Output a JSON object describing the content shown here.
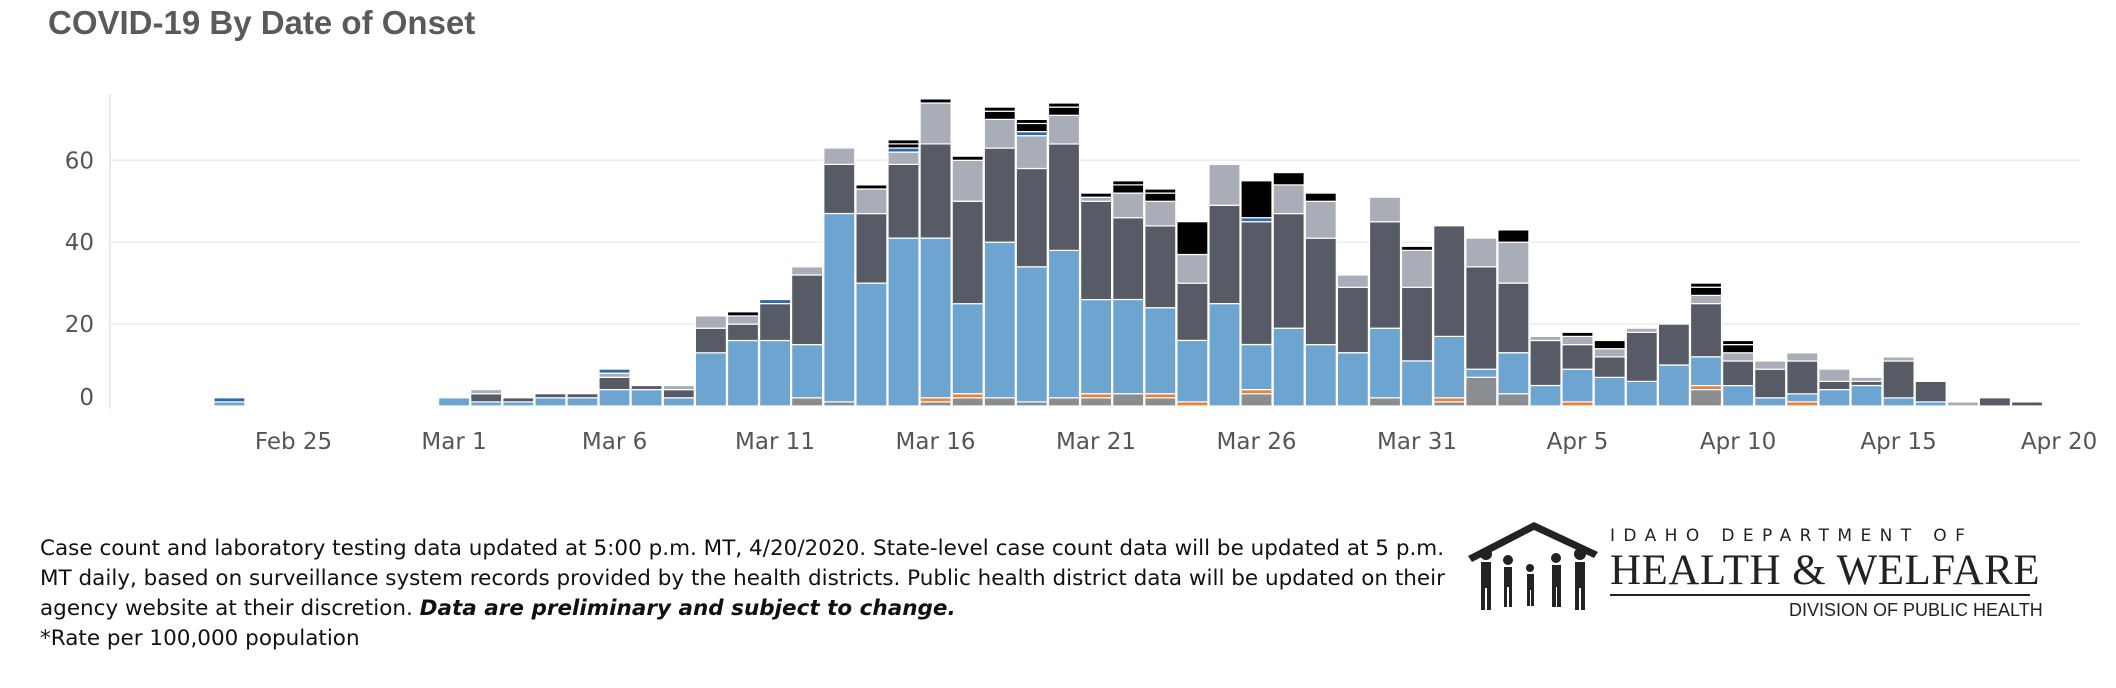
{
  "title": "COVID-19 By Date of Onset",
  "footnote": {
    "text": "Case count and laboratory testing data updated at 5:00 p.m. MT, 4/20/2020. State-level case count data will be updated at 5 p.m. MT daily, based on surveillance system records provided by the health districts. Public health district data will be updated on their agency website at their discretion. ",
    "emphasis": "Data are preliminary and subject to change.",
    "rate_note": "*Rate per 100,000 population"
  },
  "logo": {
    "line1": "IDAHO DEPARTMENT OF",
    "line2": "HEALTH & WELFARE",
    "line3": "DIVISION OF PUBLIC HEALTH",
    "icon": "family-figures-house-icon"
  },
  "chart_data": {
    "type": "bar",
    "stacked": true,
    "title": "COVID-19 By Date of Onset",
    "xlabel": "",
    "ylabel": "",
    "x_start": "2020-02-20",
    "x_tick_labels": [
      "Feb 25",
      "Mar 1",
      "Mar 6",
      "Mar 11",
      "Mar 16",
      "Mar 21",
      "Mar 26",
      "Mar 31",
      "Apr 5",
      "Apr 10",
      "Apr 15",
      "Apr 20"
    ],
    "x_tick_dates": [
      "2020-02-25",
      "2020-03-01",
      "2020-03-06",
      "2020-03-11",
      "2020-03-16",
      "2020-03-21",
      "2020-03-26",
      "2020-03-31",
      "2020-04-05",
      "2020-04-10",
      "2020-04-15",
      "2020-04-20"
    ],
    "y_tick_labels": [
      "0",
      "20",
      "40",
      "60"
    ],
    "y_tick_values": [
      0,
      20,
      40,
      60
    ],
    "ylim": [
      0,
      76
    ],
    "grid": true,
    "legend": "none",
    "colors": [
      "#8a8d91",
      "#e8833a",
      "#6ea4d0",
      "#575b66",
      "#a9adb8",
      "#2f6aa8"
    ],
    "dates": [
      "2020-02-23",
      "2020-03-01",
      "2020-03-02",
      "2020-03-03",
      "2020-03-04",
      "2020-03-05",
      "2020-03-06",
      "2020-03-07",
      "2020-03-08",
      "2020-03-09",
      "2020-03-10",
      "2020-03-11",
      "2020-03-12",
      "2020-03-13",
      "2020-03-14",
      "2020-03-15",
      "2020-03-16",
      "2020-03-17",
      "2020-03-18",
      "2020-03-19",
      "2020-03-20",
      "2020-03-21",
      "2020-03-22",
      "2020-03-23",
      "2020-03-24",
      "2020-03-25",
      "2020-03-26",
      "2020-03-27",
      "2020-03-28",
      "2020-03-29",
      "2020-03-30",
      "2020-03-31",
      "2020-04-01",
      "2020-04-02",
      "2020-04-03",
      "2020-04-04",
      "2020-04-05",
      "2020-04-06",
      "2020-04-07",
      "2020-04-08",
      "2020-04-09",
      "2020-04-10",
      "2020-04-11",
      "2020-04-12",
      "2020-04-13",
      "2020-04-14",
      "2020-04-15",
      "2020-04-16",
      "2020-04-17",
      "2020-04-18",
      "2020-04-19"
    ],
    "series": [
      {
        "values": [
          0,
          0,
          0,
          0,
          0,
          0,
          0,
          0,
          0,
          0,
          0,
          0,
          2,
          1,
          0,
          0,
          1,
          2,
          2,
          1,
          2,
          2,
          3,
          2,
          0,
          0,
          3,
          0,
          0,
          0,
          2,
          0,
          1,
          7,
          3,
          0,
          0,
          0,
          0,
          0,
          4,
          0,
          0,
          0,
          0,
          0,
          0,
          0,
          0,
          0,
          0
        ]
      },
      {
        "values": [
          0,
          0,
          0,
          0,
          0,
          0,
          0,
          0,
          0,
          0,
          0,
          0,
          0,
          0,
          0,
          0,
          1,
          1,
          0,
          0,
          0,
          1,
          0,
          1,
          1,
          0,
          1,
          0,
          0,
          0,
          0,
          0,
          1,
          0,
          0,
          0,
          1,
          0,
          0,
          0,
          1,
          0,
          0,
          1,
          0,
          0,
          0,
          0,
          0,
          0,
          0
        ]
      },
      {
        "values": [
          1,
          2,
          1,
          1,
          2,
          2,
          4,
          4,
          2,
          13,
          16,
          16,
          13,
          46,
          30,
          41,
          39,
          22,
          38,
          33,
          36,
          23,
          23,
          21,
          15,
          25,
          11,
          19,
          15,
          13,
          17,
          11,
          15,
          2,
          10,
          5,
          8,
          7,
          6,
          10,
          7,
          5,
          2,
          2,
          4,
          5,
          2,
          1,
          0,
          0,
          0
        ]
      },
      {
        "values": [
          0,
          0,
          2,
          1,
          1,
          1,
          3,
          1,
          2,
          6,
          4,
          9,
          17,
          12,
          17,
          18,
          23,
          25,
          23,
          24,
          26,
          24,
          20,
          20,
          14,
          24,
          30,
          28,
          26,
          16,
          26,
          18,
          27,
          25,
          17,
          11,
          6,
          5,
          12,
          10,
          13,
          6,
          7,
          8,
          2,
          1,
          9,
          5,
          0,
          2,
          1
        ]
      },
      {
        "values": [
          0,
          0,
          1,
          0,
          0,
          0,
          1,
          0,
          1,
          3,
          2,
          0,
          2,
          4,
          6,
          3,
          10,
          10,
          7,
          8,
          7,
          1,
          6,
          6,
          7,
          10,
          0,
          7,
          9,
          3,
          6,
          9,
          0,
          7,
          10,
          1,
          2,
          2,
          1,
          0,
          2,
          2,
          2,
          2,
          3,
          1,
          1,
          0,
          1,
          0,
          0
        ]
      },
      {
        "values": [
          1,
          0,
          0,
          0,
          0,
          0,
          1,
          0,
          0,
          0,
          0,
          1,
          0,
          0,
          0,
          1,
          0,
          0,
          0,
          1,
          0,
          0,
          0,
          0,
          0,
          0,
          1,
          0,
          0,
          0,
          0,
          0,
          0,
          0,
          0,
          0,
          0,
          0,
          0,
          0,
          0,
          0,
          0,
          0,
          0,
          0,
          0,
          0,
          0,
          0,
          0
        ]
      },
      {
        "values": [
          0,
          0,
          0,
          0,
          0,
          0,
          0,
          0,
          0,
          0,
          1,
          0,
          0,
          0,
          0,
          1,
          1,
          1,
          2,
          2,
          2,
          1,
          2,
          2,
          8,
          0,
          9,
          3,
          2,
          0,
          0,
          1,
          0,
          0,
          3,
          0,
          1,
          2,
          0,
          0,
          2,
          2,
          0,
          0,
          0,
          0,
          0,
          0,
          0,
          0,
          0
        ]
      },
      {
        "values": [
          0,
          0,
          0,
          0,
          0,
          0,
          0,
          0,
          0,
          0,
          0,
          0,
          0,
          0,
          1,
          1,
          0,
          0,
          1,
          1,
          1,
          0,
          1,
          1,
          0,
          0,
          0,
          0,
          0,
          0,
          0,
          0,
          0,
          0,
          0,
          0,
          0,
          0,
          0,
          0,
          1,
          1,
          0,
          0,
          0,
          0,
          0,
          0,
          0,
          0,
          0
        ]
      }
    ]
  }
}
